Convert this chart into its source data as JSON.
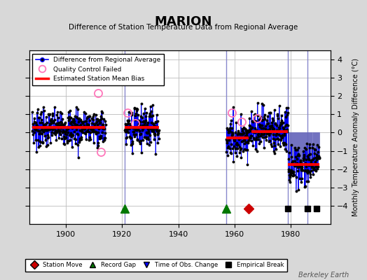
{
  "title": "MARION",
  "subtitle": "Difference of Station Temperature Data from Regional Average",
  "ylabel": "Monthly Temperature Anomaly Difference (°C)",
  "xlim": [
    1887,
    1994
  ],
  "ylim": [
    -5,
    4.5
  ],
  "yticks": [
    -4,
    -3,
    -2,
    -1,
    0,
    1,
    2,
    3,
    4
  ],
  "xticks": [
    1900,
    1920,
    1940,
    1960,
    1980
  ],
  "background_color": "#d8d8d8",
  "plot_bg_color": "#ffffff",
  "grid_color": "#bbbbbb",
  "segments": [
    {
      "x_start": 1888,
      "x_end": 1914,
      "bias": 0.3
    },
    {
      "x_start": 1921,
      "x_end": 1933,
      "bias": 0.3
    },
    {
      "x_start": 1957,
      "x_end": 1965,
      "bias": -0.3
    },
    {
      "x_start": 1966,
      "x_end": 1979,
      "bias": 0.05
    },
    {
      "x_start": 1979,
      "x_end": 1990,
      "bias": -1.75
    }
  ],
  "vertical_lines": [
    {
      "x": 1921,
      "color": "#8888cc"
    },
    {
      "x": 1957,
      "color": "#8888cc"
    },
    {
      "x": 1979,
      "color": "#8888cc"
    },
    {
      "x": 1986,
      "color": "#8888cc"
    }
  ],
  "event_markers": [
    {
      "x": 1921,
      "type": "record_gap",
      "color": "#007700"
    },
    {
      "x": 1957,
      "type": "record_gap",
      "color": "#007700"
    },
    {
      "x": 1965,
      "type": "station_move",
      "color": "#cc0000"
    },
    {
      "x": 1979,
      "type": "empirical_break",
      "color": "#000000"
    },
    {
      "x": 1986,
      "type": "empirical_break",
      "color": "#000000"
    },
    {
      "x": 1989,
      "type": "empirical_break",
      "color": "#000000"
    }
  ],
  "watermark": "Berkeley Earth"
}
